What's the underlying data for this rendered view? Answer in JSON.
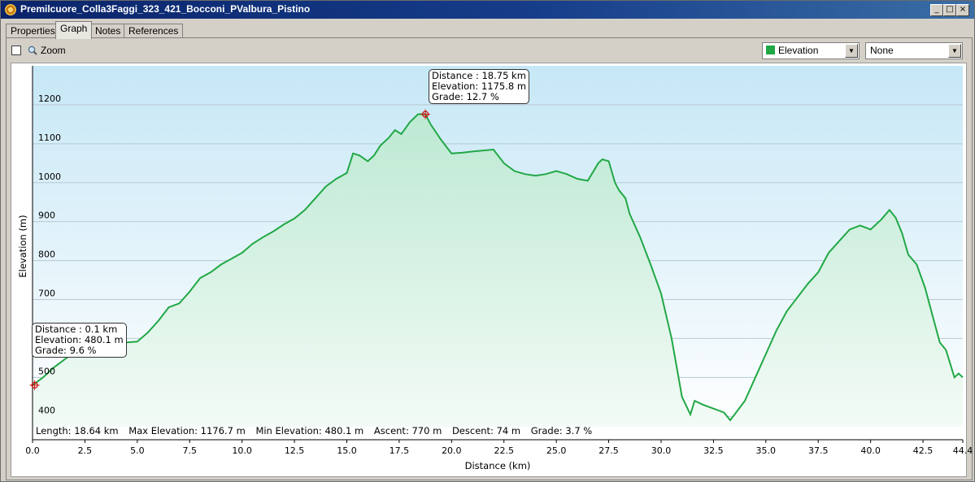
{
  "window": {
    "title": "Premilcuore_Colla3Faggi_323_421_Bocconi_PValbura_Pistino",
    "buttons": [
      "_",
      "□",
      "×"
    ]
  },
  "tabs": [
    {
      "label": "Properties",
      "active": false
    },
    {
      "label": "Graph",
      "active": true
    },
    {
      "label": "Notes",
      "active": false
    },
    {
      "label": "References",
      "active": false
    }
  ],
  "toolbar": {
    "zoom_label": "Zoom",
    "zoom_checked": false,
    "series_select": {
      "value": "Elevation",
      "color": "#21a846"
    },
    "compare_select": {
      "value": "None"
    }
  },
  "callouts": [
    {
      "distance": "Distance : 18.75 km",
      "elevation": "Elevation: 1175.8 m",
      "grade": "Grade: 12.7 %"
    },
    {
      "distance": "Distance : 0.1 km",
      "elevation": "Elevation: 480.1 m",
      "grade": "Grade: 9.6 %"
    }
  ],
  "stats": {
    "length": "Length: 18.64 km",
    "max_elevation": "Max Elevation: 1176.7 m",
    "min_elevation": "Min Elevation: 480.1 m",
    "ascent": "Ascent: 770 m",
    "descent": "Descent: 74 m",
    "grade": "Grade: 3.7 %"
  },
  "chart_data": {
    "type": "area",
    "xlabel": "Distance  (km)",
    "ylabel": "Elevation (m)",
    "xlim": [
      0,
      44.4
    ],
    "ylim": [
      340,
      1300
    ],
    "x_ticks": [
      0,
      2.5,
      5,
      7.5,
      10,
      12.5,
      15,
      17.5,
      20,
      22.5,
      25,
      27.5,
      30,
      32.5,
      35,
      37.5,
      40,
      42.5,
      44.4
    ],
    "x_tick_labels": [
      "0.0",
      "2.5",
      "5.0",
      "7.5",
      "10.0",
      "12.5",
      "15.0",
      "17.5",
      "20.0",
      "22.5",
      "25.0",
      "27.5",
      "30.0",
      "32.5",
      "35.0",
      "37.5",
      "40.0",
      "42.5",
      "44.4"
    ],
    "y_ticks": [
      400,
      500,
      600,
      700,
      800,
      900,
      1000,
      1100,
      1200
    ],
    "y_tick_labels": [
      "400",
      "500",
      "600",
      "700",
      "800",
      "900",
      "1000",
      "1100",
      "1200"
    ],
    "grid": true,
    "series": [
      {
        "color": "#21a846",
        "x": [
          0,
          0.5,
          1,
          1.5,
          2,
          2.5,
          3,
          3.5,
          4,
          4.5,
          5,
          5.5,
          6,
          6.5,
          7,
          7.5,
          8,
          8.5,
          9,
          9.5,
          10,
          10.5,
          11,
          11.5,
          12,
          12.5,
          13,
          13.5,
          14,
          14.5,
          15,
          15.3,
          15.6,
          16,
          16.3,
          16.6,
          17,
          17.3,
          17.6,
          18,
          18.4,
          18.75,
          19,
          19.5,
          20,
          20.5,
          21,
          22,
          22.5,
          23,
          23.5,
          24,
          24.5,
          25,
          25.5,
          26,
          26.5,
          27,
          27.2,
          27.5,
          27.8,
          28,
          28.3,
          28.5,
          29,
          29.5,
          30,
          30.5,
          31,
          31.4,
          31.6,
          32,
          32.5,
          33,
          33.3,
          34,
          34.5,
          35,
          35.5,
          36,
          37,
          37.5,
          38,
          38.5,
          39,
          39.5,
          40,
          40.5,
          40.9,
          41.2,
          41.5,
          41.8,
          42.2,
          42.6,
          43,
          43.3,
          43.6,
          44,
          44.2,
          44.4
        ],
        "y": [
          480.1,
          500,
          525,
          545,
          565,
          580,
          590,
          593,
          592,
          590,
          592,
          615,
          645,
          680,
          690,
          720,
          755,
          770,
          790,
          805,
          820,
          843,
          860,
          875,
          893,
          908,
          930,
          960,
          990,
          1010,
          1025,
          1075,
          1070,
          1055,
          1070,
          1095,
          1115,
          1135,
          1125,
          1155,
          1175.8,
          1175.8,
          1150,
          1110,
          1075,
          1077,
          1080,
          1085,
          1050,
          1030,
          1022,
          1018,
          1022,
          1030,
          1022,
          1010,
          1005,
          1050,
          1060,
          1055,
          1000,
          980,
          960,
          920,
          860,
          790,
          715,
          600,
          450,
          405,
          440,
          430,
          420,
          410,
          390,
          440,
          500,
          560,
          620,
          670,
          740,
          770,
          820,
          850,
          880,
          890,
          880,
          905,
          930,
          910,
          870,
          815,
          790,
          730,
          650,
          590,
          570,
          500,
          510,
          500
        ]
      }
    ]
  }
}
